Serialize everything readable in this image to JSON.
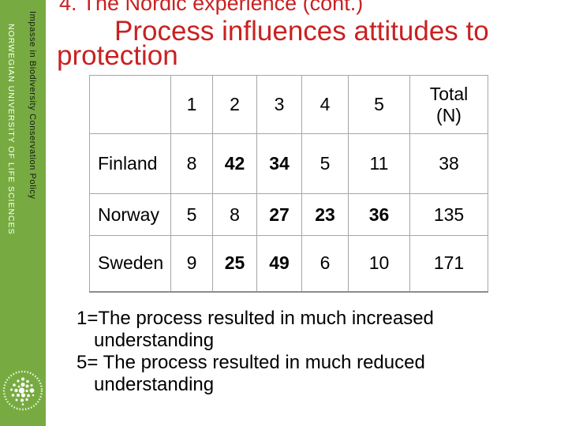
{
  "colors": {
    "green": "#77ab41",
    "title_red": "#c92121",
    "table_border": "#a6a6a6"
  },
  "slide": {
    "title": "4. The Nordic experience (cont.)",
    "subtitle": "Process influences attitudes to protection",
    "notes": [
      "1=The process resulted in much increased understanding",
      "5= The process resulted in much reduced understanding"
    ]
  },
  "sidebar": {
    "course_title": "Impasse in Biodiversity Conservation Policy",
    "university": "NORWEGIAN UNIVERSITY OF LIFE SCIENCES",
    "logo_icon": "university-dots-logo"
  },
  "table": {
    "scale_headers": [
      "1",
      "2",
      "3",
      "4",
      "5"
    ],
    "total_header": "Total (N)",
    "rows": [
      {
        "country": "Finland",
        "values": [
          {
            "v": "8",
            "bold": false
          },
          {
            "v": "42",
            "bold": true
          },
          {
            "v": "34",
            "bold": true
          },
          {
            "v": "5",
            "bold": false
          },
          {
            "v": "11",
            "bold": false
          }
        ],
        "total": "38"
      },
      {
        "country": "Norway",
        "values": [
          {
            "v": "5",
            "bold": false
          },
          {
            "v": "8",
            "bold": false
          },
          {
            "v": "27",
            "bold": true
          },
          {
            "v": "23",
            "bold": true
          },
          {
            "v": "36",
            "bold": true
          }
        ],
        "total": "135"
      },
      {
        "country": "Sweden",
        "values": [
          {
            "v": "9",
            "bold": false
          },
          {
            "v": "25",
            "bold": true
          },
          {
            "v": "49",
            "bold": true
          },
          {
            "v": "6",
            "bold": false
          },
          {
            "v": "10",
            "bold": false
          }
        ],
        "total": "171"
      }
    ]
  }
}
